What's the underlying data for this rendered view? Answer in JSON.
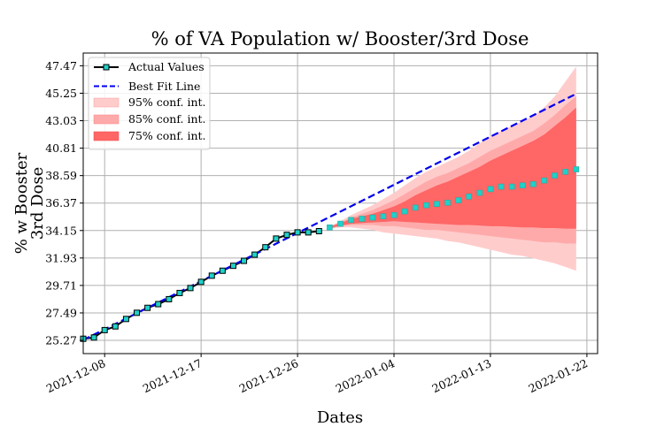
{
  "chart_data": {
    "type": "line",
    "title": "% of VA Population w/ Booster/3rd Dose",
    "xlabel": "Dates",
    "ylabel_lines": [
      "% w Booster",
      "3rd Dose"
    ],
    "x_ticks": [
      "2021-12-08",
      "2021-12-17",
      "2021-12-26",
      "2022-01-04",
      "2022-01-13",
      "2022-01-22"
    ],
    "y_ticks": [
      25.27,
      27.49,
      29.71,
      31.93,
      34.15,
      36.37,
      38.59,
      40.81,
      43.03,
      45.25,
      47.47
    ],
    "xlim": [
      "2021-12-06",
      "2022-01-23"
    ],
    "ylim": [
      24.2,
      48.5
    ],
    "grid": true,
    "legend_position": "upper-left",
    "colors": {
      "actual_line": "#000000",
      "marker_fill": "#1fd1c8",
      "best_fit": "#0000ee",
      "ci95": "#ffcccc",
      "ci85": "#ffaaaa",
      "ci75": "#ff6666"
    },
    "legend": [
      {
        "label": "Actual Values",
        "kind": "line-marker"
      },
      {
        "label": "Best Fit Line",
        "kind": "dashed"
      },
      {
        "label": "95% conf. int.",
        "kind": "band95"
      },
      {
        "label": "85% conf. int.",
        "kind": "band85"
      },
      {
        "label": "75% conf. int.",
        "kind": "band75"
      }
    ],
    "actual": {
      "x": [
        "2021-12-06",
        "2021-12-07",
        "2021-12-08",
        "2021-12-09",
        "2021-12-10",
        "2021-12-11",
        "2021-12-12",
        "2021-12-13",
        "2021-12-14",
        "2021-12-15",
        "2021-12-16",
        "2021-12-17",
        "2021-12-18",
        "2021-12-19",
        "2021-12-20",
        "2021-12-21",
        "2021-12-22",
        "2021-12-23",
        "2021-12-24",
        "2021-12-25",
        "2021-12-26",
        "2021-12-27",
        "2021-12-28"
      ],
      "y": [
        25.4,
        25.5,
        26.1,
        26.4,
        27.0,
        27.5,
        27.9,
        28.2,
        28.6,
        29.1,
        29.5,
        30.0,
        30.5,
        30.9,
        31.3,
        31.7,
        32.2,
        32.8,
        33.5,
        33.8,
        34.0,
        34.0,
        34.1
      ]
    },
    "predicted": {
      "x": [
        "2021-12-29",
        "2021-12-30",
        "2021-12-31",
        "2022-01-01",
        "2022-01-02",
        "2022-01-03",
        "2022-01-04",
        "2022-01-05",
        "2022-01-06",
        "2022-01-07",
        "2022-01-08",
        "2022-01-09",
        "2022-01-10",
        "2022-01-11",
        "2022-01-12",
        "2022-01-13",
        "2022-01-14",
        "2022-01-15",
        "2022-01-16",
        "2022-01-17",
        "2022-01-18",
        "2022-01-19",
        "2022-01-20",
        "2022-01-21"
      ],
      "y": [
        34.4,
        34.7,
        35.0,
        35.1,
        35.2,
        35.3,
        35.4,
        35.7,
        36.0,
        36.2,
        36.3,
        36.4,
        36.6,
        36.9,
        37.2,
        37.5,
        37.7,
        37.7,
        37.8,
        37.9,
        38.2,
        38.6,
        38.9,
        39.1
      ],
      "ci95_upper": [
        34.5,
        34.9,
        35.4,
        35.8,
        36.2,
        36.7,
        37.2,
        37.8,
        38.4,
        38.9,
        39.3,
        39.7,
        40.1,
        40.6,
        41.2,
        41.8,
        42.2,
        42.6,
        43.0,
        43.4,
        44.1,
        45.0,
        46.2,
        47.4
      ],
      "ci95_lower": [
        34.3,
        34.4,
        34.4,
        34.3,
        34.2,
        34.0,
        33.9,
        33.8,
        33.7,
        33.6,
        33.5,
        33.3,
        33.2,
        33.0,
        32.8,
        32.6,
        32.4,
        32.2,
        32.1,
        31.9,
        31.7,
        31.5,
        31.2,
        30.9
      ],
      "ci85_upper": [
        34.5,
        34.8,
        35.2,
        35.5,
        35.8,
        36.2,
        36.6,
        37.1,
        37.6,
        38.1,
        38.5,
        38.8,
        39.2,
        39.6,
        40.1,
        40.6,
        41.0,
        41.4,
        41.8,
        42.2,
        42.8,
        43.5,
        44.3,
        45.0
      ],
      "ci85_lower": [
        34.3,
        34.5,
        34.6,
        34.6,
        34.6,
        34.5,
        34.5,
        34.4,
        34.3,
        34.2,
        34.2,
        34.1,
        34.0,
        33.9,
        33.8,
        33.7,
        33.6,
        33.5,
        33.4,
        33.3,
        33.2,
        33.2,
        33.1,
        33.1
      ],
      "ci75_upper": [
        34.45,
        34.75,
        35.1,
        35.3,
        35.5,
        35.8,
        36.1,
        36.5,
        37.0,
        37.4,
        37.8,
        38.1,
        38.5,
        38.9,
        39.3,
        39.8,
        40.2,
        40.6,
        41.0,
        41.4,
        41.9,
        42.6,
        43.3,
        44.1
      ],
      "ci75_lower": [
        34.35,
        34.55,
        34.7,
        34.75,
        34.8,
        34.85,
        34.9,
        34.85,
        34.8,
        34.75,
        34.7,
        34.65,
        34.6,
        34.6,
        34.55,
        34.5,
        34.5,
        34.45,
        34.4,
        34.4,
        34.35,
        34.35,
        34.3,
        34.3
      ]
    },
    "best_fit": {
      "x": [
        "2021-12-06",
        "2022-01-21"
      ],
      "y": [
        25.3,
        45.2
      ]
    }
  }
}
